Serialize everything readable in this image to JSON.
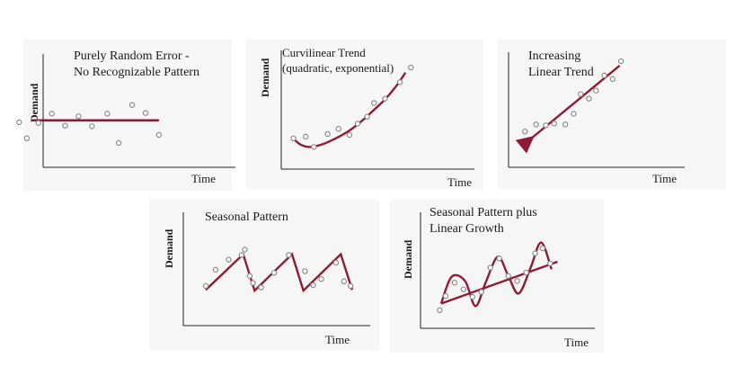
{
  "colors": {
    "line": "#8e1b35",
    "point_stroke": "#8a8a8a",
    "axis": "#222222",
    "panel_bg": "#f6f6f6"
  },
  "chart_data": [
    {
      "id": "random",
      "type": "scatter",
      "title": [
        "Purely Random Error -",
        "No Recognizable Pattern"
      ],
      "xlabel": "Time",
      "ylabel": "Demand",
      "xlim": [
        0,
        10
      ],
      "ylim": [
        0,
        10
      ],
      "points": [
        {
          "x": 0.3,
          "y": 4.6
        },
        {
          "x": 0.7,
          "y": 2.2
        },
        {
          "x": 1.3,
          "y": 4.5
        },
        {
          "x": 2.0,
          "y": 5.9
        },
        {
          "x": 2.7,
          "y": 4.1
        },
        {
          "x": 3.4,
          "y": 5.5
        },
        {
          "x": 4.1,
          "y": 4.0
        },
        {
          "x": 4.9,
          "y": 5.9
        },
        {
          "x": 5.5,
          "y": 1.5
        },
        {
          "x": 6.2,
          "y": 7.2
        },
        {
          "x": 6.9,
          "y": 6.0
        },
        {
          "x": 7.6,
          "y": 2.7
        }
      ],
      "line": [
        {
          "x": 1.0,
          "y": 4.9
        },
        {
          "x": 7.6,
          "y": 4.9
        }
      ]
    },
    {
      "id": "curvilinear",
      "type": "scatter",
      "title": [
        "Curvilinear Trend",
        "(quadratic, exponential)"
      ],
      "xlabel": "Time",
      "ylabel": "Demand",
      "xlim": [
        0,
        10
      ],
      "ylim": [
        0,
        10
      ],
      "points": [
        {
          "x": 0.3,
          "y": 2.0
        },
        {
          "x": 1.2,
          "y": 2.2
        },
        {
          "x": 1.8,
          "y": 1.0
        },
        {
          "x": 2.8,
          "y": 2.5
        },
        {
          "x": 3.6,
          "y": 3.1
        },
        {
          "x": 4.4,
          "y": 2.4
        },
        {
          "x": 5.0,
          "y": 3.7
        },
        {
          "x": 5.7,
          "y": 4.5
        },
        {
          "x": 6.2,
          "y": 6.1
        },
        {
          "x": 7.0,
          "y": 6.6
        },
        {
          "x": 8.1,
          "y": 8.5
        },
        {
          "x": 8.9,
          "y": 10.2
        }
      ],
      "line": [
        {
          "x": 0.2,
          "y": 2.1
        },
        {
          "x": 0.8,
          "y": 1.3
        },
        {
          "x": 1.5,
          "y": 1.0
        },
        {
          "x": 2.4,
          "y": 1.3
        },
        {
          "x": 3.4,
          "y": 2.0
        },
        {
          "x": 4.4,
          "y": 2.9
        },
        {
          "x": 5.3,
          "y": 4.0
        },
        {
          "x": 6.2,
          "y": 5.3
        },
        {
          "x": 7.0,
          "y": 6.5
        },
        {
          "x": 7.8,
          "y": 8.0
        },
        {
          "x": 8.5,
          "y": 9.6
        }
      ]
    },
    {
      "id": "linear",
      "type": "scatter",
      "title": [
        "Increasing",
        "Linear Trend"
      ],
      "xlabel": "Time",
      "ylabel": "",
      "xlim": [
        0,
        10
      ],
      "ylim": [
        0,
        10
      ],
      "points": [
        {
          "x": 0.4,
          "y": 2.4
        },
        {
          "x": 1.2,
          "y": 3.2
        },
        {
          "x": 1.9,
          "y": 3.1
        },
        {
          "x": 2.5,
          "y": 3.3
        },
        {
          "x": 3.3,
          "y": 3.2
        },
        {
          "x": 3.9,
          "y": 4.4
        },
        {
          "x": 4.4,
          "y": 6.6
        },
        {
          "x": 5.0,
          "y": 6.1
        },
        {
          "x": 5.5,
          "y": 7.0
        },
        {
          "x": 6.1,
          "y": 8.7
        },
        {
          "x": 6.7,
          "y": 8.3
        },
        {
          "x": 7.3,
          "y": 10.3
        }
      ],
      "line": [
        {
          "x": 0.6,
          "y": 1.3
        },
        {
          "x": 7.2,
          "y": 9.8
        }
      ]
    },
    {
      "id": "seasonal",
      "type": "scatter",
      "title": [
        "Seasonal Pattern"
      ],
      "xlabel": "Time",
      "ylabel": "Demand",
      "xlim": [
        0,
        10
      ],
      "ylim": [
        0,
        10
      ],
      "points": [
        {
          "x": 0.5,
          "y": 3.5
        },
        {
          "x": 1.1,
          "y": 5.6
        },
        {
          "x": 1.9,
          "y": 6.9
        },
        {
          "x": 2.7,
          "y": 7.5
        },
        {
          "x": 2.9,
          "y": 8.2
        },
        {
          "x": 3.2,
          "y": 4.8
        },
        {
          "x": 3.4,
          "y": 3.9
        },
        {
          "x": 3.9,
          "y": 3.3
        },
        {
          "x": 4.7,
          "y": 5.2
        },
        {
          "x": 5.6,
          "y": 7.5
        },
        {
          "x": 6.6,
          "y": 5.4
        },
        {
          "x": 7.1,
          "y": 3.6
        },
        {
          "x": 7.6,
          "y": 4.4
        },
        {
          "x": 8.5,
          "y": 6.5
        },
        {
          "x": 9.0,
          "y": 4.1
        },
        {
          "x": 9.4,
          "y": 3.5
        }
      ],
      "line": [
        {
          "x": 0.5,
          "y": 3.0
        },
        {
          "x": 2.8,
          "y": 7.6
        },
        {
          "x": 3.5,
          "y": 2.9
        },
        {
          "x": 5.8,
          "y": 7.6
        },
        {
          "x": 6.5,
          "y": 2.9
        },
        {
          "x": 8.8,
          "y": 7.6
        },
        {
          "x": 9.5,
          "y": 3.0
        }
      ]
    },
    {
      "id": "seasonal-growth",
      "type": "scatter",
      "title": [
        "Seasonal Pattern plus",
        "Linear Growth"
      ],
      "xlabel": "Time",
      "ylabel": "Demand",
      "xlim": [
        0,
        10
      ],
      "ylim": [
        0,
        10
      ],
      "points": [
        {
          "x": 0.2,
          "y": 1.3
        },
        {
          "x": 0.6,
          "y": 3.0
        },
        {
          "x": 1.2,
          "y": 4.6
        },
        {
          "x": 1.8,
          "y": 3.8
        },
        {
          "x": 2.4,
          "y": 2.9
        },
        {
          "x": 3.0,
          "y": 3.5
        },
        {
          "x": 3.6,
          "y": 6.4
        },
        {
          "x": 4.2,
          "y": 7.5
        },
        {
          "x": 4.8,
          "y": 5.4
        },
        {
          "x": 5.4,
          "y": 4.8
        },
        {
          "x": 6.0,
          "y": 5.8
        },
        {
          "x": 6.6,
          "y": 8.1
        },
        {
          "x": 7.1,
          "y": 8.7
        },
        {
          "x": 7.6,
          "y": 6.9
        }
      ],
      "line": [
        {
          "x": 0.3,
          "y": 2.1
        },
        {
          "x": 8.1,
          "y": 7.1
        }
      ],
      "curve": [
        {
          "x": 0.3,
          "y": 2.1
        },
        {
          "x": 1.0,
          "y": 5.3
        },
        {
          "x": 1.9,
          "y": 4.8
        },
        {
          "x": 2.6,
          "y": 1.8
        },
        {
          "x": 3.3,
          "y": 4.7
        },
        {
          "x": 4.1,
          "y": 7.7
        },
        {
          "x": 4.8,
          "y": 5.4
        },
        {
          "x": 5.5,
          "y": 3.3
        },
        {
          "x": 6.3,
          "y": 6.4
        },
        {
          "x": 7.0,
          "y": 9.4
        },
        {
          "x": 7.7,
          "y": 6.2
        }
      ]
    }
  ]
}
